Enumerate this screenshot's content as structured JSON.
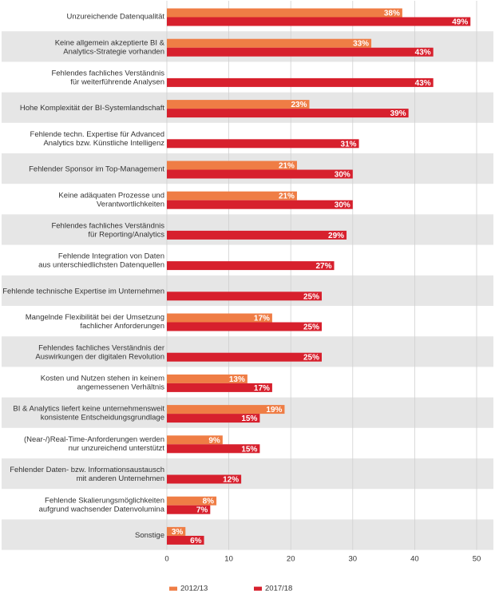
{
  "chart_data": {
    "type": "bar",
    "orientation": "horizontal",
    "categories": [
      [
        "Unzureichende Datenqualität"
      ],
      [
        "Keine allgemein akzeptierte BI &",
        "Analytics-Strategie vorhanden"
      ],
      [
        "Fehlendes fachliches Verständnis",
        "für weiterführende Analysen"
      ],
      [
        "Hohe Komplexität der BI-Systemlandschaft"
      ],
      [
        "Fehlende techn. Expertise für Advanced",
        "Analytics bzw. Künstliche Intelligenz"
      ],
      [
        "Fehlender Sponsor im Top-Management"
      ],
      [
        "Keine adäquaten Prozesse und",
        "Verantwortlichkeiten"
      ],
      [
        "Fehlendes fachliches Verständnis",
        "für Reporting/Analytics"
      ],
      [
        "Fehlende Integration von Daten",
        "aus unterschiedlichsten Datenquellen"
      ],
      [
        "Fehlende technische Expertise im Unternehmen"
      ],
      [
        "Mangelnde Flexibilität bei der Umsetzung",
        "fachlicher Anforderungen"
      ],
      [
        "Fehlendes fachliches Verständnis der",
        "Auswirkungen der digitalen Revolution"
      ],
      [
        "Kosten und Nutzen stehen in keinem",
        "angemessenen Verhältnis"
      ],
      [
        "BI & Analytics liefert keine unternehmensweit",
        "konsistente Entscheidungsgrundlage"
      ],
      [
        "(Near-/)Real-Time-Anforderungen werden",
        "nur unzureichend unterstützt"
      ],
      [
        "Fehlender Daten- bzw. Informationsaustausch",
        "mit anderen Unternehmen"
      ],
      [
        "Fehlende Skalierungsmöglichkeiten",
        "aufgrund wachsender Datenvolumina"
      ],
      [
        "Sonstige"
      ]
    ],
    "series": [
      {
        "name": "2012/13",
        "color": "#ef7d45",
        "values": [
          38,
          33,
          null,
          23,
          null,
          21,
          21,
          null,
          null,
          null,
          17,
          null,
          13,
          19,
          9,
          null,
          8,
          3
        ]
      },
      {
        "name": "2017/18",
        "color": "#d7202d",
        "values": [
          49,
          43,
          43,
          39,
          31,
          30,
          30,
          29,
          27,
          25,
          25,
          25,
          17,
          15,
          15,
          12,
          7,
          6
        ]
      }
    ],
    "value_suffix": "%",
    "xticks": [
      0,
      10,
      20,
      30,
      40,
      50
    ],
    "xlim": [
      0,
      50
    ],
    "legend_position": "bottom-left",
    "band_color": "#e6e6e6"
  }
}
